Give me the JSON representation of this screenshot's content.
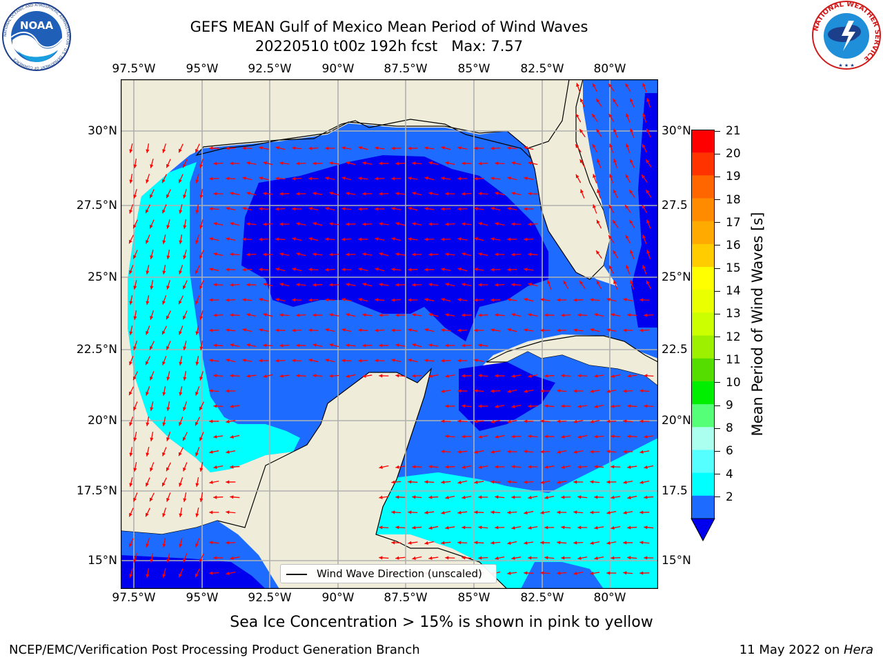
{
  "title": {
    "line1": "GEFS MEAN Gulf of Mexico Mean Period of Wind Waves",
    "line2": "20220510 t00z 192h fcst   Max: 7.57"
  },
  "map": {
    "lon_labels": [
      "97.5°W",
      "95°W",
      "92.5°W",
      "90°W",
      "87.5°W",
      "85°W",
      "82.5°W",
      "80°W"
    ],
    "lat_labels_left": [
      "30°N",
      "27.5°N",
      "25°N",
      "22.5°N",
      "20°N",
      "17.5°N",
      "15°N"
    ],
    "lat_labels_right": [
      "30°N",
      "27.5",
      "25°N",
      "22.5",
      "20°N",
      "17.5",
      "15°N"
    ],
    "land_color": "#efedd9",
    "ocean_colors": {
      "dark": "#0000ee",
      "mid": "#1e6cff",
      "light": "#00ffff"
    },
    "arrow_color": "#ff0000"
  },
  "legend": {
    "label": "Wind Wave Direction (unscaled)"
  },
  "colorbar": {
    "title": "Mean Period of Wind Waves [s]",
    "labels": [
      "21",
      "20",
      "19",
      "18",
      "17",
      "16",
      "15",
      "14",
      "13",
      "12",
      "11",
      "10",
      "9",
      "8",
      "6",
      "4",
      "2"
    ],
    "colors": [
      "#ff0000",
      "#ff3300",
      "#ff6600",
      "#ff8c00",
      "#ffaa00",
      "#ffcc00",
      "#ffff00",
      "#eaff00",
      "#ccff00",
      "#9cf000",
      "#55dd00",
      "#00ee00",
      "#55ff77",
      "#aaffee",
      "#55ffff",
      "#00ffff",
      "#1e6cff"
    ],
    "under_color": "#0000ee"
  },
  "sea_ice_note": "Sea Ice Concentration > 15% is shown in pink to yellow",
  "footer": {
    "left": "NCEP/EMC/Verification Post Processing Product Generation Branch",
    "right_prefix": "11 May 2022 on ",
    "right_machine": "Hera"
  },
  "logos": {
    "left": {
      "text": "NOAA",
      "ring_text": "NATIONAL OCEANIC AND ATMOSPHERIC ADMINISTRATION · U.S. DEPARTMENT OF COMMERCE"
    },
    "right": {
      "ring_text": "NATIONAL WEATHER SERVICE"
    }
  }
}
